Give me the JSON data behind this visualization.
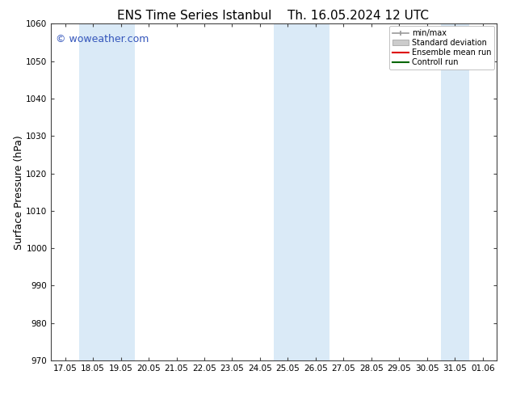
{
  "title_left": "ENS Time Series Istanbul",
  "title_right": "Th. 16.05.2024 12 UTC",
  "ylabel": "Surface Pressure (hPa)",
  "ylim": [
    970,
    1060
  ],
  "yticks": [
    970,
    980,
    990,
    1000,
    1010,
    1020,
    1030,
    1040,
    1050,
    1060
  ],
  "xtick_labels": [
    "17.05",
    "18.05",
    "19.05",
    "20.05",
    "21.05",
    "22.05",
    "23.05",
    "24.05",
    "25.05",
    "26.05",
    "27.05",
    "28.05",
    "29.05",
    "30.05",
    "31.05",
    "01.06"
  ],
  "shaded_regions": [
    {
      "xstart": 1,
      "xend": 3,
      "color": "#daeaf7"
    },
    {
      "xstart": 8,
      "xend": 10,
      "color": "#daeaf7"
    },
    {
      "xstart": 14,
      "xend": 15,
      "color": "#daeaf7"
    }
  ],
  "watermark_text": "© woweather.com",
  "watermark_color": "#3355bb",
  "bg_color": "#ffffff",
  "spine_color": "#444444",
  "tick_color": "#444444",
  "legend_items": [
    {
      "label": "min/max",
      "color": "#999999",
      "style": "minmax"
    },
    {
      "label": "Standard deviation",
      "color": "#cccccc",
      "style": "stddev"
    },
    {
      "label": "Ensemble mean run",
      "color": "#dd0000",
      "style": "line"
    },
    {
      "label": "Controll run",
      "color": "#006600",
      "style": "line"
    }
  ],
  "title_fontsize": 11,
  "tick_fontsize": 7.5,
  "ylabel_fontsize": 9,
  "legend_fontsize": 7,
  "watermark_fontsize": 9
}
